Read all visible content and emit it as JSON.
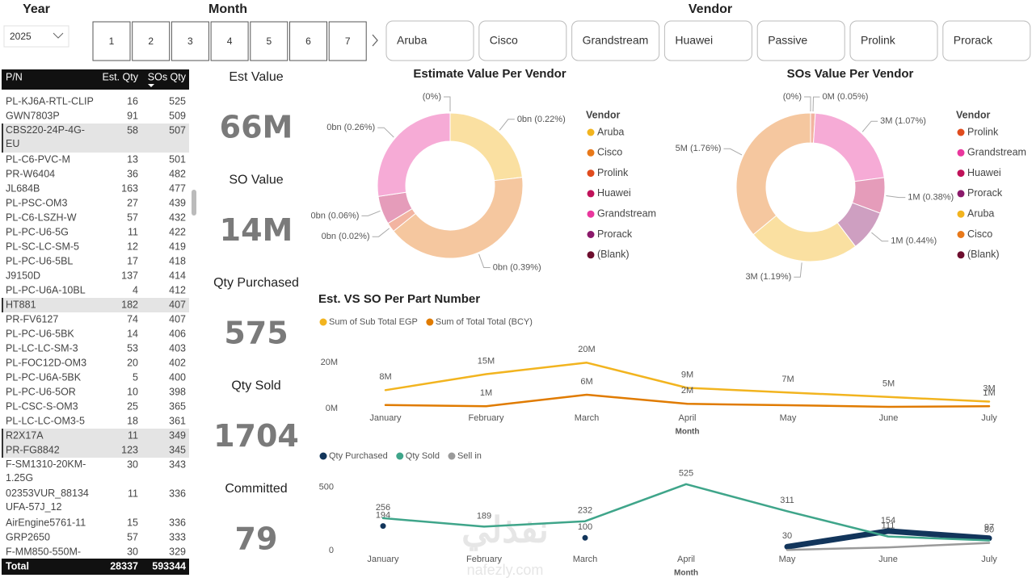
{
  "slicers": {
    "year": {
      "label": "Year",
      "value": "2025"
    },
    "month": {
      "label": "Month",
      "items": [
        "1",
        "2",
        "3",
        "4",
        "5",
        "6",
        "7"
      ]
    },
    "vendor": {
      "label": "Vendor",
      "items": [
        "Aruba",
        "Cisco",
        "Grandstream",
        "Huawei",
        "Passive",
        "Prolink",
        "Prorack"
      ]
    }
  },
  "table": {
    "columns": [
      "P/N",
      "Est. Qty",
      "SOs Qty"
    ],
    "rows": [
      [
        "PL-KJ6A-RTL-CLIP",
        16,
        525
      ],
      [
        "GWN7803P",
        91,
        509
      ],
      [
        "CBS220-24P-4G-EU",
        58,
        507
      ],
      [
        "PL-C6-PVC-M",
        13,
        501
      ],
      [
        "PR-W6404",
        36,
        482
      ],
      [
        "JL684B",
        163,
        477
      ],
      [
        "PL-PSC-OM3",
        27,
        439
      ],
      [
        "PL-C6-LSZH-W",
        57,
        432
      ],
      [
        "PL-PC-U6-5G",
        11,
        422
      ],
      [
        "PL-SC-LC-SM-5",
        12,
        419
      ],
      [
        "PL-PC-U6-5BL",
        17,
        418
      ],
      [
        "J9150D",
        137,
        414
      ],
      [
        "PL-PC-U6A-10BL",
        4,
        412
      ],
      [
        "HT881",
        182,
        407
      ],
      [
        "PR-FV6127",
        74,
        407
      ],
      [
        "PL-PC-U6-5BK",
        14,
        406
      ],
      [
        "PL-LC-LC-SM-3",
        53,
        403
      ],
      [
        "PL-FOC12D-OM3",
        20,
        402
      ],
      [
        "PL-PC-U6A-5BK",
        5,
        400
      ],
      [
        "PL-PC-U6-5OR",
        10,
        398
      ],
      [
        "PL-CSC-S-OM3",
        25,
        365
      ],
      [
        "PL-LC-LC-OM3-5",
        18,
        361
      ],
      [
        "R2X17A",
        11,
        349
      ],
      [
        "PR-FG8842",
        123,
        345
      ],
      [
        "F-SM1310-20KM-1.25G",
        30,
        343
      ],
      [
        "02353VUR_88134 UFA-57J_12",
        11,
        336
      ],
      [
        "AirEngine5761-11",
        15,
        336
      ],
      [
        "GRP2650",
        57,
        333
      ],
      [
        "F-MM850-550M-",
        30,
        329
      ]
    ],
    "highlighted_rows": [
      2,
      13,
      22,
      23
    ],
    "total": [
      "Total",
      28337,
      593344
    ]
  },
  "cards": [
    {
      "title": "Est Value",
      "value": "66M"
    },
    {
      "title": "SO Value",
      "value": "14M"
    },
    {
      "title": "Qty Purchased",
      "value": "575"
    },
    {
      "title": "Qty Sold",
      "value": "1704"
    },
    {
      "title": "Committed",
      "value": "79"
    }
  ],
  "chart_data": [
    {
      "type": "donut",
      "title": "Estimate Value Per Vendor",
      "legend_title": "Vendor",
      "categories": [
        "Aruba",
        "Cisco",
        "Prolink",
        "Huawei",
        "Grandstream",
        "Prorack",
        "(Blank)"
      ],
      "colors": [
        "#f2b41f",
        "#e8791a",
        "#e04c1e",
        "#c0135a",
        "#e9379d",
        "#8b1a6b",
        "#6d0e2e"
      ],
      "values": [
        0.22,
        0.39,
        0.02,
        0.06,
        0.26,
        0,
        0
      ],
      "value_labels": [
        "0bn (0.22%)",
        "0bn (0.39%)",
        "0bn (0.02%)",
        "0bn (0.06%)",
        "0bn (0.26%)",
        "(0%)",
        null
      ]
    },
    {
      "type": "donut",
      "title": "SOs Value Per Vendor",
      "legend_title": "Vendor",
      "categories": [
        "Prolink",
        "Grandstream",
        "Huawei",
        "Prorack",
        "Aruba",
        "Cisco",
        "(Blank)"
      ],
      "colors": [
        "#e04c1e",
        "#e9379d",
        "#c0135a",
        "#8b1a6b",
        "#f2b41f",
        "#e8791a",
        "#6d0e2e"
      ],
      "values": [
        0.05,
        1.07,
        0.38,
        0.44,
        1.19,
        1.76,
        0
      ],
      "value_labels": [
        "0M (0.05%)",
        "3M (1.07%)",
        "1M (0.38%)",
        "1M (0.44%)",
        "3M (1.19%)",
        "5M (1.76%)",
        "(0%)"
      ]
    },
    {
      "type": "line",
      "title": "Est. VS SO Per Part Number",
      "x_label": "Month",
      "categories": [
        "January",
        "February",
        "March",
        "April",
        "May",
        "June",
        "July"
      ],
      "ylim": [
        0,
        24000000
      ],
      "yticks": [
        {
          "value": 0,
          "label": "0M"
        },
        {
          "value": 20000000,
          "label": "20M"
        }
      ],
      "series": [
        {
          "name": "Sum of Sub Total EGP",
          "color": "#f2b41f",
          "values": [
            8000000,
            15000000,
            20000000,
            9000000,
            7000000,
            5000000,
            3000000
          ],
          "value_labels": [
            "8M",
            "15M",
            "20M",
            "9M",
            "7M",
            "5M",
            "3M"
          ]
        },
        {
          "name": "Sum of Total Total (BCY)",
          "color": "#e07b00",
          "values": [
            1500000,
            1000000,
            6000000,
            2000000,
            1400000,
            700000,
            1000000
          ],
          "value_labels": [
            null,
            "1M",
            "6M",
            "2M",
            null,
            null,
            "1M"
          ]
        }
      ]
    },
    {
      "type": "line",
      "x_label": "Month",
      "categories": [
        "January",
        "February",
        "March",
        "April",
        "May",
        "June",
        "July"
      ],
      "ylim": [
        0,
        600
      ],
      "yticks": [
        0,
        500
      ],
      "series": [
        {
          "name": "Qty Purchased",
          "color": "#12355b",
          "values": [
            194,
            null,
            100,
            null,
            30,
            154,
            97
          ],
          "labels": true
        },
        {
          "name": "Qty Sold",
          "color": "#3fa58a",
          "values": [
            256,
            189,
            232,
            525,
            311,
            111,
            80
          ],
          "labels": true
        },
        {
          "name": "Sell in",
          "color": "#9a9a9a",
          "values": [
            null,
            null,
            null,
            null,
            5,
            25,
            60
          ],
          "labels": false
        }
      ]
    }
  ],
  "watermark": [
    "نفذلي",
    "nafezly.com"
  ]
}
